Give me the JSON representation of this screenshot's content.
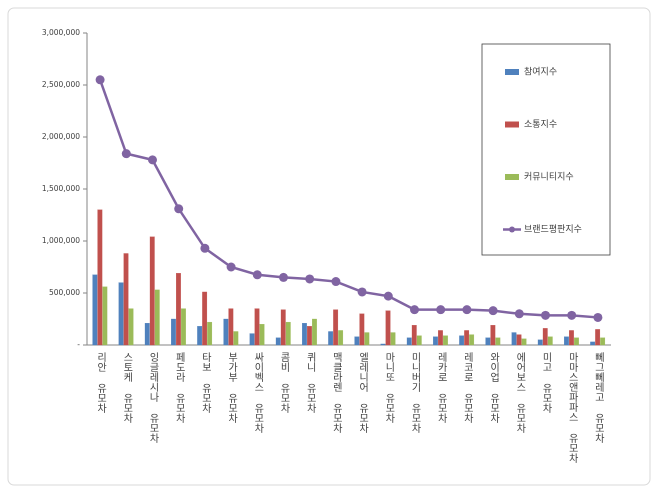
{
  "chart_data": {
    "type": "bar",
    "categories": [
      "리안 유모차",
      "스토케 유모차",
      "잉글레시나 유모차",
      "페도라 유모차",
      "타보 유모차",
      "부가부 유모차",
      "싸이벡스 유모차",
      "콤비 유모차",
      "퀴니 유모차",
      "맥클라렌 유모차",
      "엘레니어 유모차",
      "마니또 유모차",
      "미니버기 유모차",
      "레카로 유모차",
      "레코로 유모차",
      "와이업 유모차",
      "에어보스 유모차",
      "미고 유모차",
      "마마스앤파파스 유모차",
      "뻬그뻬레고 유모차"
    ],
    "series": [
      {
        "name": "참여지수",
        "color": "#4f81bd",
        "values": [
          675000,
          600000,
          210000,
          250000,
          180000,
          250000,
          110000,
          70000,
          210000,
          130000,
          80000,
          10000,
          70000,
          80000,
          90000,
          70000,
          120000,
          50000,
          80000,
          30000
        ]
      },
      {
        "name": "소통지수",
        "color": "#c0504d",
        "values": [
          1300000,
          880000,
          1040000,
          690000,
          510000,
          350000,
          350000,
          340000,
          180000,
          340000,
          300000,
          330000,
          190000,
          140000,
          140000,
          190000,
          100000,
          160000,
          140000,
          150000
        ]
      },
      {
        "name": "커뮤니티지수",
        "color": "#9bbb59",
        "values": [
          560000,
          350000,
          530000,
          350000,
          220000,
          130000,
          200000,
          220000,
          250000,
          140000,
          120000,
          120000,
          90000,
          90000,
          100000,
          70000,
          60000,
          80000,
          70000,
          70000
        ]
      },
      {
        "name": "브랜드평판지수",
        "color": "#8064a2",
        "type": "line",
        "values": [
          2550000,
          1840000,
          1780000,
          1310000,
          930000,
          750000,
          675000,
          650000,
          635000,
          610000,
          510000,
          470000,
          340000,
          340000,
          340000,
          330000,
          300000,
          285000,
          285000,
          265000
        ]
      }
    ],
    "ylim": [
      0,
      3000000
    ],
    "yticks": [
      {
        "value": 0,
        "label": "-"
      },
      {
        "value": 500000,
        "label": "500,000"
      },
      {
        "value": 1000000,
        "label": "1,000,000"
      },
      {
        "value": 1500000,
        "label": "1,500,000"
      },
      {
        "value": 2000000,
        "label": "2,000,000"
      },
      {
        "value": 2500000,
        "label": "2,500,000"
      },
      {
        "value": 3000000,
        "label": "3,000,000"
      }
    ],
    "legend": "right"
  }
}
